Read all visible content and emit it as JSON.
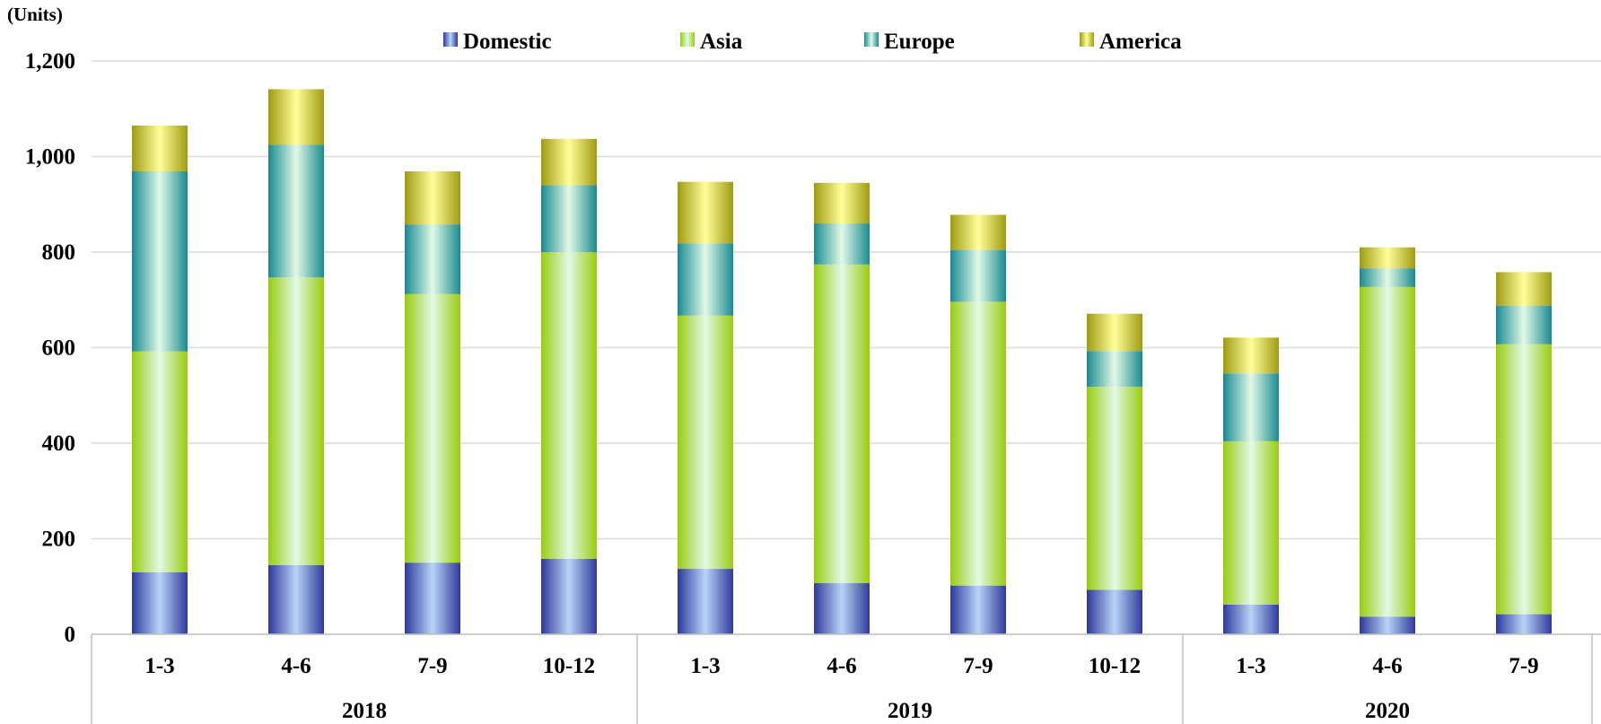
{
  "chart_data": {
    "type": "bar",
    "stacked": true,
    "unit_label": "(Units)",
    "categories": [
      "1-3",
      "4-6",
      "7-9",
      "10-12",
      "1-3",
      "4-6",
      "7-9",
      "10-12",
      "1-3",
      "4-6",
      "7-9"
    ],
    "groups": [
      {
        "label": "2018",
        "start": 0,
        "count": 4
      },
      {
        "label": "2019",
        "start": 4,
        "count": 4
      },
      {
        "label": "2020",
        "start": 8,
        "count": 3
      }
    ],
    "series": [
      {
        "name": "Domestic",
        "values": [
          130,
          145,
          150,
          158,
          137,
          107,
          102,
          93,
          62,
          37,
          42
        ]
      },
      {
        "name": "Asia",
        "values": [
          462,
          602,
          562,
          642,
          530,
          667,
          594,
          425,
          342,
          690,
          565
        ]
      },
      {
        "name": "Europe",
        "values": [
          377,
          278,
          146,
          140,
          151,
          86,
          109,
          75,
          142,
          39,
          81
        ]
      },
      {
        "name": "America",
        "values": [
          96,
          116,
          111,
          97,
          129,
          85,
          73,
          78,
          75,
          44,
          70
        ]
      }
    ],
    "ylim": [
      0,
      1200
    ],
    "yticks": [
      0,
      200,
      400,
      600,
      800,
      1000,
      1200
    ],
    "ytick_labels": [
      "0",
      "200",
      "400",
      "600",
      "800",
      "1,000",
      "1,200"
    ],
    "grid": true,
    "legend_position": "top",
    "colors": {
      "Domestic": {
        "edge": "#2e3a9a",
        "mid": "#b8d3f7"
      },
      "Asia": {
        "edge": "#99cc11",
        "mid": "#e2f9e7"
      },
      "Europe": {
        "edge": "#1a8a90",
        "mid": "#e2f9e7"
      },
      "America": {
        "edge": "#a09a12",
        "mid": "#ffff99"
      }
    }
  }
}
